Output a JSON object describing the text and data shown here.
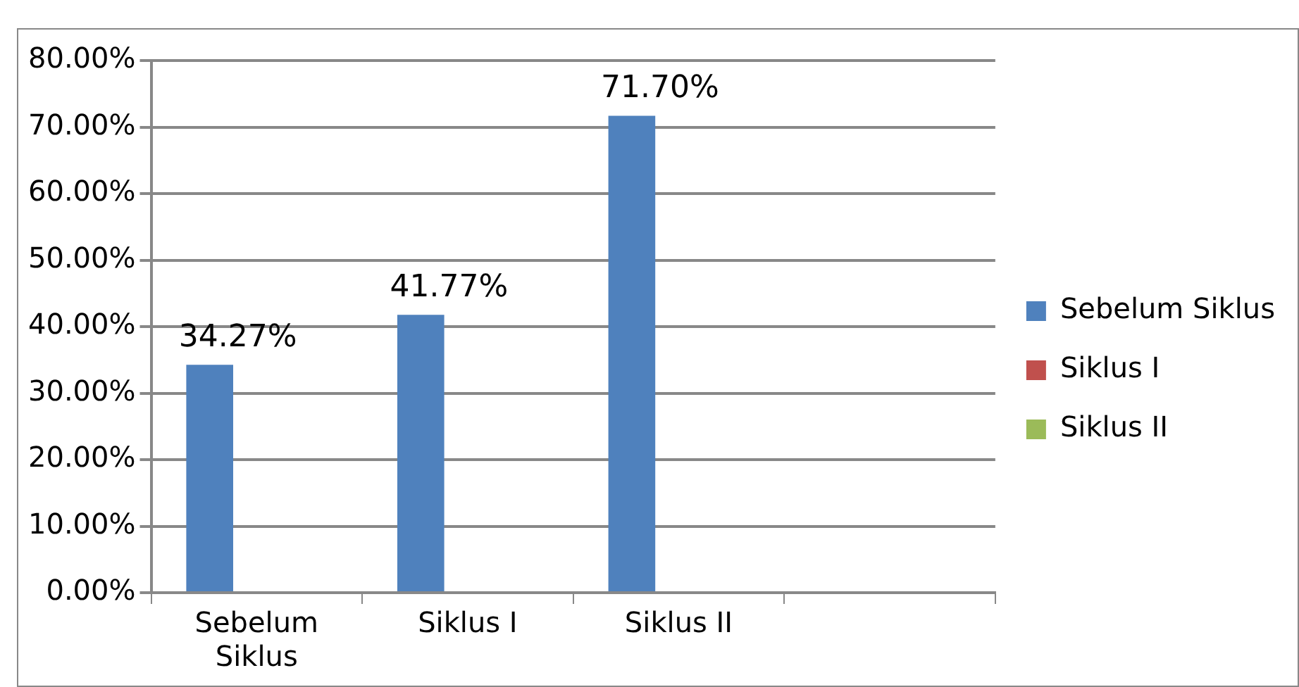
{
  "chart_data": {
    "type": "bar",
    "categories": [
      "Sebelum Siklus",
      "Siklus I",
      "Siklus II",
      null
    ],
    "series": [
      {
        "name": "Sebelum Siklus",
        "color": "#4f81bd",
        "values": [
          34.27,
          41.77,
          71.7,
          null
        ],
        "value_labels": [
          "34.27%",
          "41.77%",
          "71.70%",
          null
        ]
      },
      {
        "name": "Siklus I",
        "color": "#c0504d",
        "values": [
          null,
          null,
          null,
          null
        ]
      },
      {
        "name": "Siklus II",
        "color": "#9bbb59",
        "values": [
          null,
          null,
          null,
          null
        ]
      }
    ],
    "ylim": [
      0,
      80
    ],
    "yticks": [
      {
        "value": 0,
        "label": "0.00%"
      },
      {
        "value": 10,
        "label": "10.00%"
      },
      {
        "value": 20,
        "label": "20.00%"
      },
      {
        "value": 30,
        "label": "30.00%"
      },
      {
        "value": 40,
        "label": "40.00%"
      },
      {
        "value": 50,
        "label": "50.00%"
      },
      {
        "value": 60,
        "label": "60.00%"
      },
      {
        "value": 70,
        "label": "70.00%"
      },
      {
        "value": 80,
        "label": "80.00%"
      }
    ],
    "grid": "y",
    "legend": "right"
  }
}
